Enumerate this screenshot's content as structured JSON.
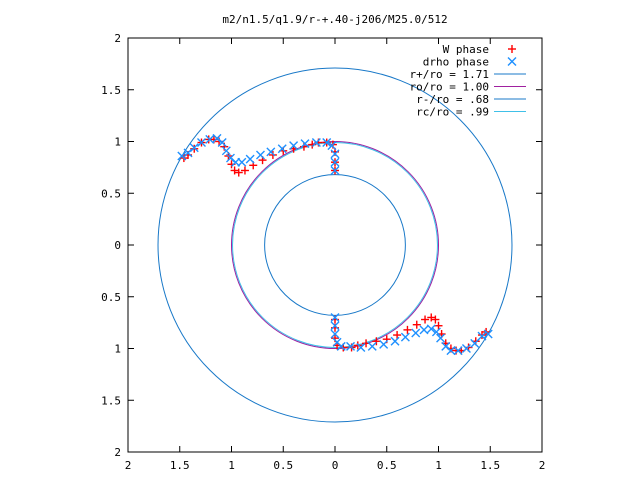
{
  "chart_data": {
    "type": "scatter",
    "title": "m2/n1.5/q1.9/r-+.40-j206/M25.0/512",
    "xlabel": "",
    "ylabel": "",
    "xlim": [
      -2,
      2
    ],
    "ylim": [
      -2,
      2
    ],
    "x_tick_values": [
      -2,
      -1.5,
      -1,
      -0.5,
      0,
      0.5,
      1,
      1.5,
      2
    ],
    "x_tick_labels": [
      "2",
      "1.5",
      "1",
      "0.5",
      "0",
      "0.5",
      "1",
      "1.5",
      "2"
    ],
    "y_tick_values": [
      2,
      1.5,
      1,
      0.5,
      0,
      -0.5,
      -1,
      -1.5,
      -2
    ],
    "y_tick_labels": [
      "2",
      "1.5",
      "1",
      "0.5",
      "0",
      "0.5",
      "1",
      "1.5",
      "2"
    ],
    "grid": false,
    "legend_position": "top-right",
    "series": [
      {
        "name": "W phase",
        "marker": "+",
        "color": "#ff0000",
        "points": [
          [
            1.46,
            -0.84
          ],
          [
            1.42,
            -0.87
          ],
          [
            1.36,
            -0.93
          ],
          [
            1.29,
            -0.99
          ],
          [
            1.22,
            -1.02
          ],
          [
            1.17,
            -1.02
          ],
          [
            1.12,
            -1.0
          ],
          [
            1.07,
            -0.95
          ],
          [
            1.03,
            -0.86
          ],
          [
            1.0,
            -0.78
          ],
          [
            0.97,
            -0.72
          ],
          [
            0.93,
            -0.7
          ],
          [
            0.87,
            -0.72
          ],
          [
            0.79,
            -0.77
          ],
          [
            0.7,
            -0.82
          ],
          [
            0.6,
            -0.87
          ],
          [
            0.5,
            -0.91
          ],
          [
            0.4,
            -0.93
          ],
          [
            0.3,
            -0.95
          ],
          [
            0.22,
            -0.97
          ],
          [
            0.16,
            -0.99
          ],
          [
            0.08,
            -0.99
          ],
          [
            0.02,
            -0.97
          ],
          [
            0.0,
            -0.9
          ],
          [
            0.0,
            -0.8
          ],
          [
            0.0,
            -0.72
          ],
          [
            -1.46,
            0.84
          ],
          [
            -1.42,
            0.87
          ],
          [
            -1.36,
            0.93
          ],
          [
            -1.29,
            0.99
          ],
          [
            -1.22,
            1.02
          ],
          [
            -1.17,
            1.02
          ],
          [
            -1.12,
            1.0
          ],
          [
            -1.07,
            0.95
          ],
          [
            -1.03,
            0.86
          ],
          [
            -1.0,
            0.78
          ],
          [
            -0.97,
            0.72
          ],
          [
            -0.93,
            0.7
          ],
          [
            -0.87,
            0.72
          ],
          [
            -0.79,
            0.77
          ],
          [
            -0.7,
            0.82
          ],
          [
            -0.6,
            0.87
          ],
          [
            -0.5,
            0.91
          ],
          [
            -0.4,
            0.93
          ],
          [
            -0.3,
            0.95
          ],
          [
            -0.22,
            0.97
          ],
          [
            -0.16,
            0.99
          ],
          [
            -0.08,
            0.99
          ],
          [
            -0.02,
            0.97
          ],
          [
            0.0,
            0.9
          ],
          [
            0.0,
            0.8
          ],
          [
            0.0,
            0.72
          ]
        ]
      },
      {
        "name": "drho phase",
        "marker": "x",
        "color": "#1e90ff",
        "points": [
          [
            1.48,
            -0.86
          ],
          [
            1.42,
            -0.88
          ],
          [
            1.35,
            -0.95
          ],
          [
            1.27,
            -1.0
          ],
          [
            1.19,
            -1.02
          ],
          [
            1.12,
            -1.02
          ],
          [
            1.07,
            -0.98
          ],
          [
            1.02,
            -0.9
          ],
          [
            0.98,
            -0.84
          ],
          [
            0.93,
            -0.81
          ],
          [
            0.86,
            -0.82
          ],
          [
            0.78,
            -0.85
          ],
          [
            0.68,
            -0.89
          ],
          [
            0.58,
            -0.93
          ],
          [
            0.47,
            -0.96
          ],
          [
            0.36,
            -0.98
          ],
          [
            0.25,
            -0.99
          ],
          [
            0.15,
            -0.98
          ],
          [
            0.06,
            -0.98
          ],
          [
            0.02,
            -0.94
          ],
          [
            0.0,
            -0.86
          ],
          [
            0.0,
            -0.78
          ],
          [
            0.0,
            -0.7
          ],
          [
            -1.48,
            0.86
          ],
          [
            -1.42,
            0.89
          ],
          [
            -1.36,
            0.94
          ],
          [
            -1.29,
            0.99
          ],
          [
            -1.21,
            1.02
          ],
          [
            -1.14,
            1.03
          ],
          [
            -1.09,
            0.99
          ],
          [
            -1.05,
            0.91
          ],
          [
            -1.01,
            0.84
          ],
          [
            -0.96,
            0.8
          ],
          [
            -0.9,
            0.8
          ],
          [
            -0.82,
            0.83
          ],
          [
            -0.72,
            0.87
          ],
          [
            -0.62,
            0.9
          ],
          [
            -0.51,
            0.93
          ],
          [
            -0.4,
            0.96
          ],
          [
            -0.29,
            0.98
          ],
          [
            -0.18,
            0.99
          ],
          [
            -0.08,
            0.99
          ],
          [
            -0.03,
            0.96
          ],
          [
            0.0,
            0.88
          ],
          [
            0.0,
            0.8
          ],
          [
            0.0,
            0.72
          ]
        ]
      }
    ],
    "circles": [
      {
        "name": "r+/ro = 1.71",
        "radius": 1.71,
        "color": "#1878c8"
      },
      {
        "name": "ro/ro = 1.00",
        "radius": 1.0,
        "color": "#a020a0"
      },
      {
        "name": "r-/ro = .68",
        "radius": 0.68,
        "color": "#1878c8"
      },
      {
        "name": "rc/ro = .99",
        "radius": 0.99,
        "color": "#40c0e8"
      }
    ]
  }
}
